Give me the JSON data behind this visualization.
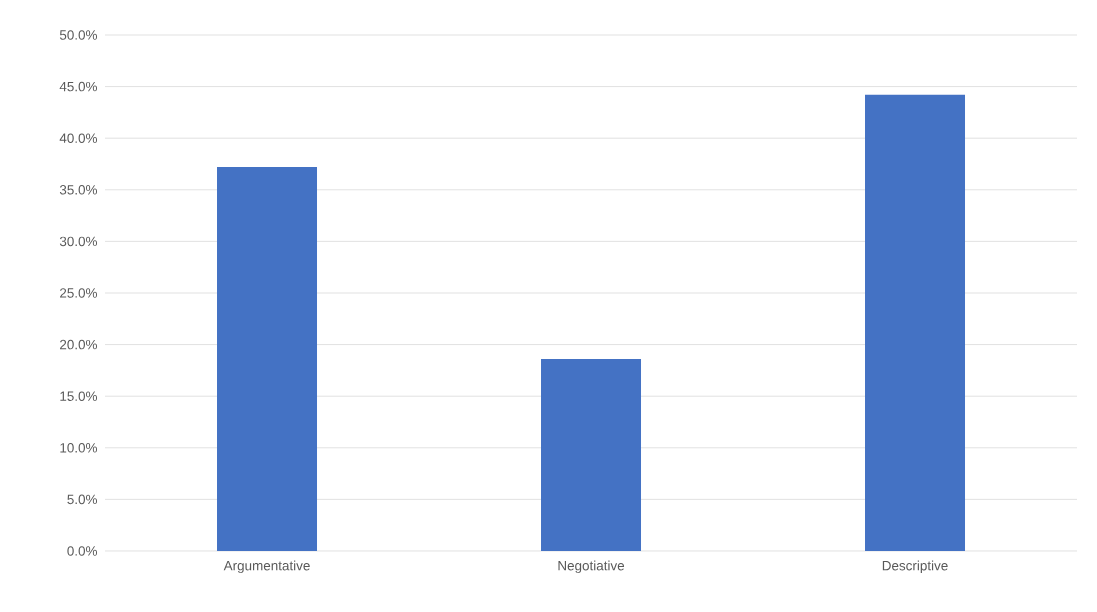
{
  "chart_data": {
    "type": "bar",
    "categories": [
      "Argumentative",
      "Negotiative",
      "Descriptive"
    ],
    "values": [
      37.2,
      18.6,
      44.2
    ],
    "color": "#4472c4",
    "ylim": [
      0,
      50
    ],
    "yticks": [
      {
        "value": 0,
        "label": "0.0%"
      },
      {
        "value": 5,
        "label": "5.0%"
      },
      {
        "value": 10,
        "label": "10.0%"
      },
      {
        "value": 15,
        "label": "15.0%"
      },
      {
        "value": 20,
        "label": "20.0%"
      },
      {
        "value": 25,
        "label": "25.0%"
      },
      {
        "value": 30,
        "label": "30.0%"
      },
      {
        "value": 35,
        "label": "35.0%"
      },
      {
        "value": 40,
        "label": "40.0%"
      },
      {
        "value": 45,
        "label": "45.0%"
      },
      {
        "value": 50,
        "label": "50.0%"
      }
    ],
    "grid": "y"
  }
}
